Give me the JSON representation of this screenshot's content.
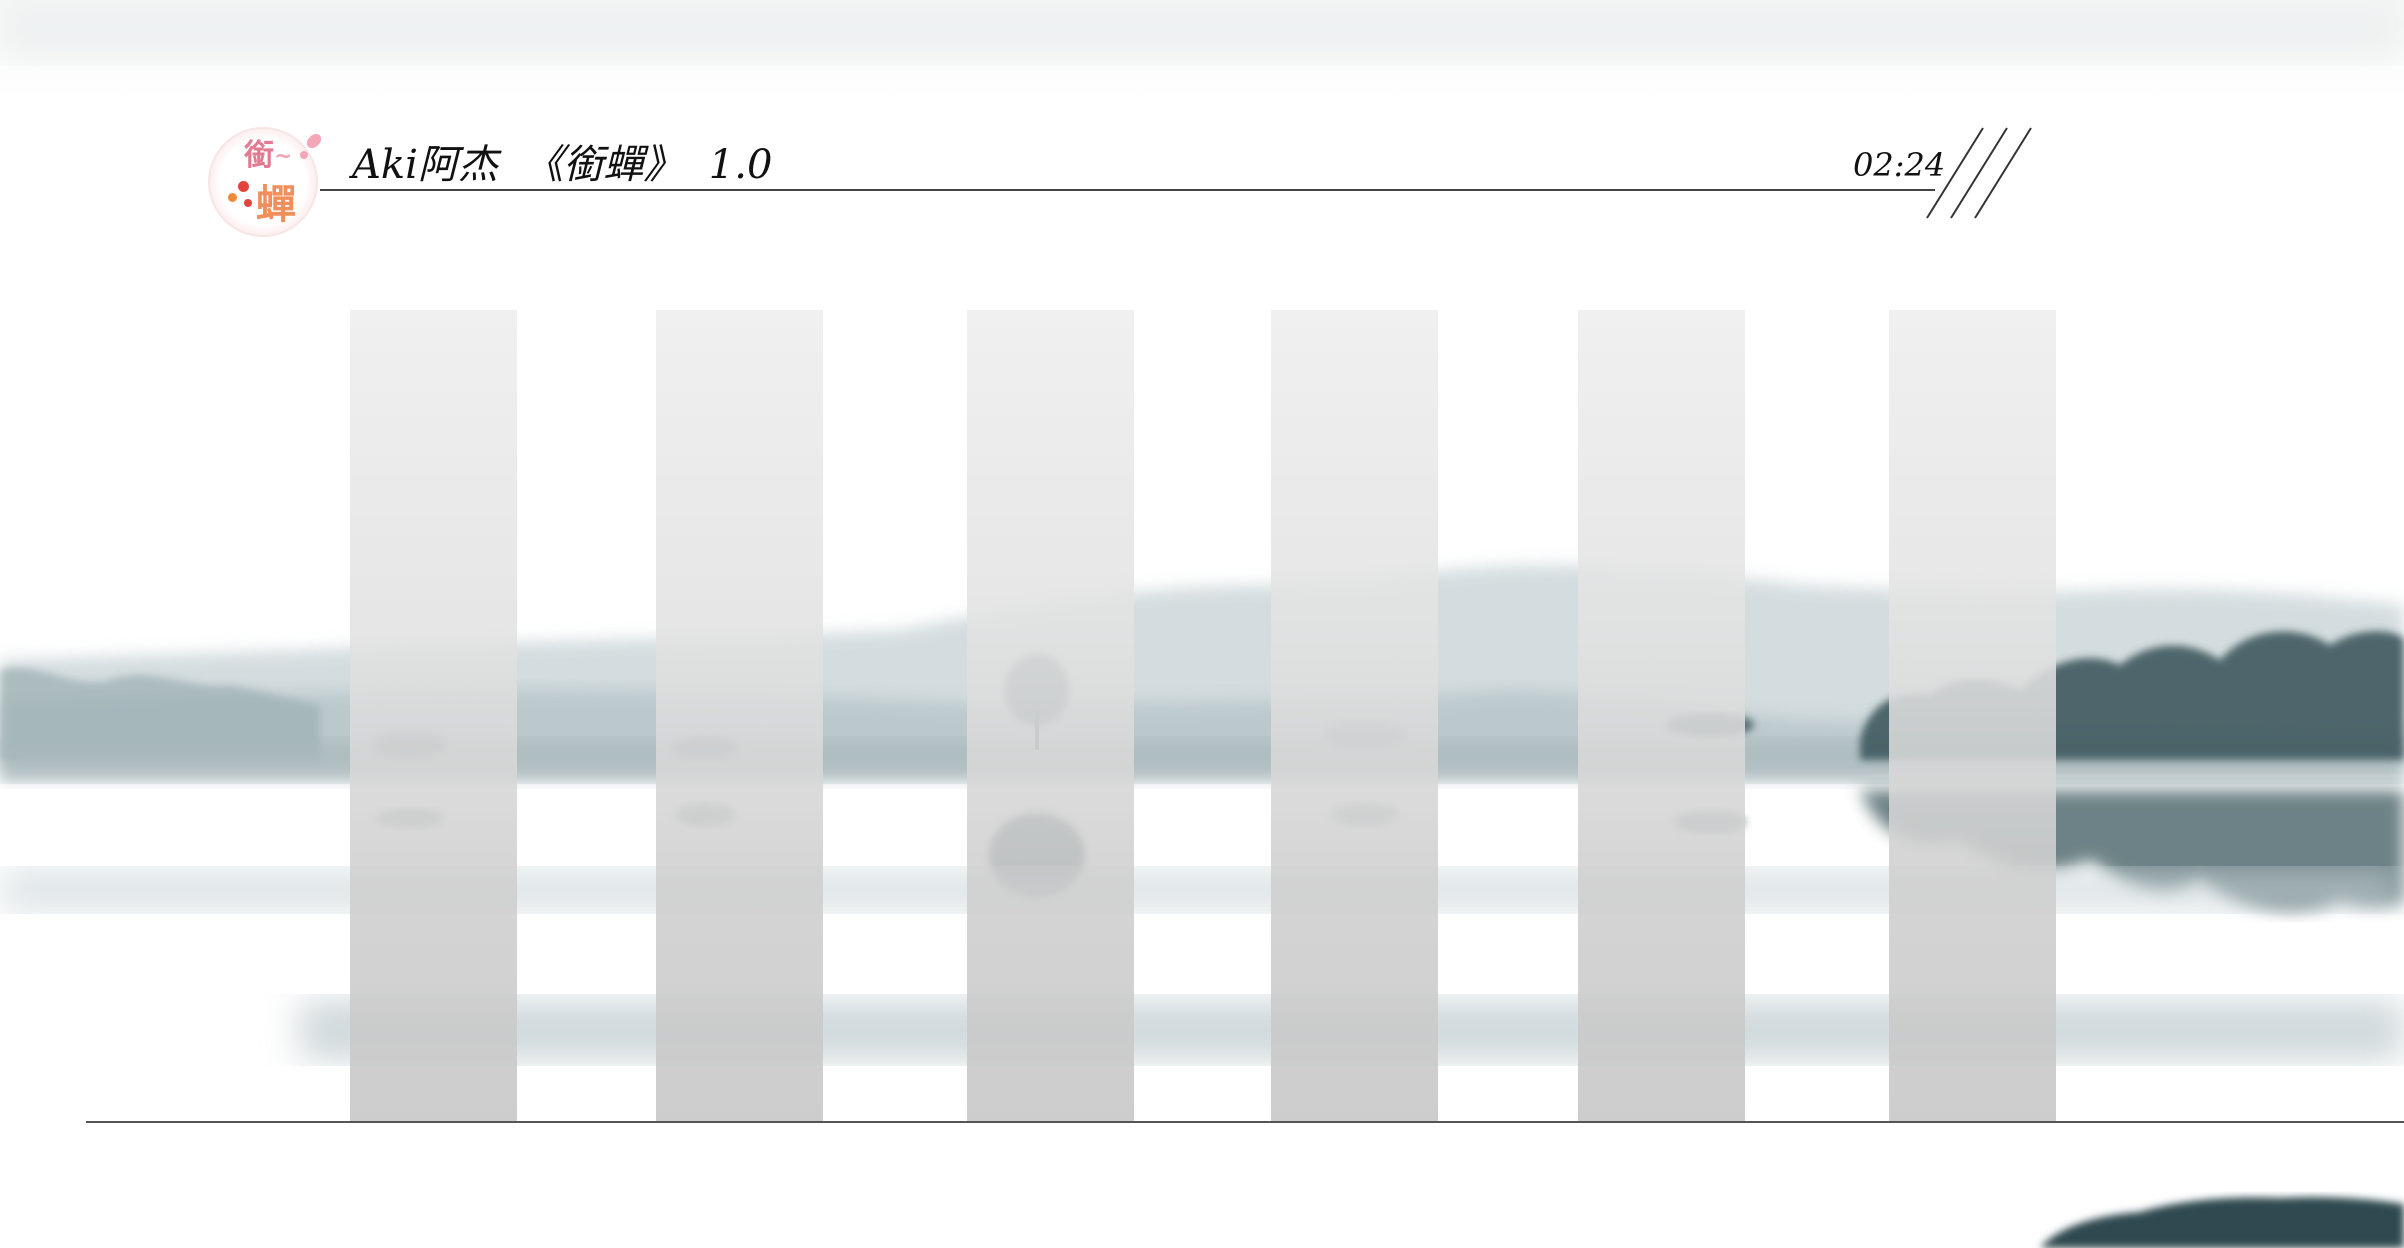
{
  "player": {
    "title": "Aki阿杰  《銜蟬》  1.0",
    "time": "02:24",
    "logo_icon": "cat-seal-logo-icon",
    "logo_text": "銜蟬"
  },
  "visualizer": {
    "bar_count": 6,
    "levels": [
      1,
      1,
      1,
      1,
      1,
      1
    ]
  },
  "colors": {
    "background": "#ffffff",
    "mist": "#dfe7ea",
    "hills": "#9fb3b8",
    "trees": "#3f5a5e",
    "bars": "#d6d6d6",
    "text": "#111111"
  }
}
